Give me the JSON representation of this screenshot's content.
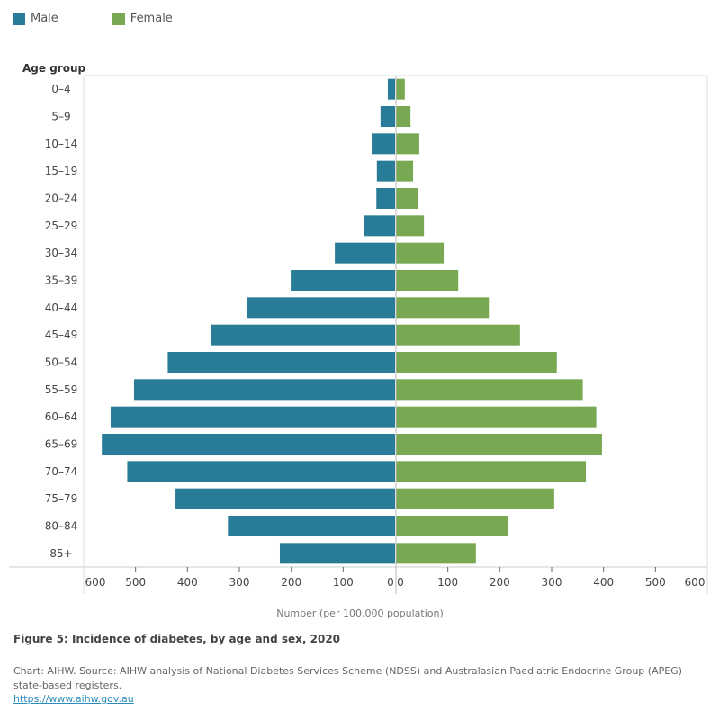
{
  "colors": {
    "male": "#287c97",
    "female": "#79a853"
  },
  "legend": [
    {
      "label": "Male"
    },
    {
      "label": "Female"
    }
  ],
  "caption": "Figure 5: Incidence of diabetes, by age and sex, 2020",
  "source": "Chart: AIHW.  Source: AIHW analysis of National Diabetes Services Scheme (NDSS) and Australasian Paediatric Endocrine Group (APEG) state-based registers.",
  "link": "https://www.aihw.gov.au",
  "chart_data": {
    "type": "bar",
    "orientation": "horizontal-population-pyramid",
    "ylabel": "Age group",
    "xlabel": "Number (per 100,000 population)",
    "xlim": [
      0,
      600
    ],
    "x_ticks": [
      "0",
      "100",
      "200",
      "300",
      "400",
      "500",
      "600"
    ],
    "categories": [
      "0–4",
      "5–9",
      "10–14",
      "15–19",
      "20–24",
      "25–29",
      "30–34",
      "35–39",
      "40–44",
      "45–49",
      "50–54",
      "55–59",
      "60–64",
      "65–69",
      "70–74",
      "75–79",
      "80–84",
      "85+"
    ],
    "series": [
      {
        "name": "Male",
        "side": "left",
        "values": [
          14,
          28,
          45,
          35,
          36,
          59,
          116,
          201,
          286,
          354,
          438,
          503,
          548,
          565,
          516,
          423,
          322,
          222
        ]
      },
      {
        "name": "Female",
        "side": "right",
        "values": [
          17,
          28,
          45,
          33,
          43,
          54,
          92,
          120,
          179,
          239,
          310,
          360,
          386,
          397,
          366,
          305,
          216,
          154
        ]
      }
    ],
    "grid": false,
    "legend_position": "top-left"
  }
}
